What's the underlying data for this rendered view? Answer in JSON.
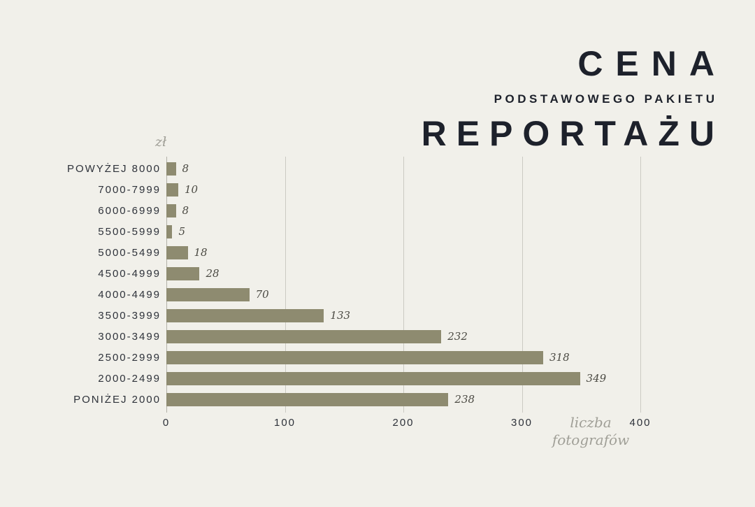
{
  "title": {
    "line1": "CENA",
    "line2": "PODSTAWOWEGO PAKIETU",
    "line3": "REPORTAŻU"
  },
  "axis": {
    "y_unit": "zł",
    "x_label_line1": "liczba",
    "x_label_line2": "fotografów",
    "ticks": [
      "0",
      "100",
      "200",
      "300",
      "400"
    ]
  },
  "chart_data": {
    "type": "bar",
    "orientation": "horizontal",
    "title": "CENA PODSTAWOWEGO PAKIETU REPORTAŻU",
    "xlabel": "liczba fotografów",
    "ylabel": "zł",
    "categories": [
      "POWYŻEJ 8000",
      "7000-7999",
      "6000-6999",
      "5500-5999",
      "5000-5499",
      "4500-4999",
      "4000-4499",
      "3500-3999",
      "3000-3499",
      "2500-2999",
      "2000-2499",
      "PONIŻEJ 2000"
    ],
    "values": [
      8,
      10,
      8,
      5,
      18,
      28,
      70,
      133,
      232,
      318,
      349,
      238
    ],
    "xlim": [
      0,
      400
    ],
    "x_tick_step": 100,
    "grid": true,
    "legend": false,
    "bar_color": "#8e8b70"
  },
  "colors": {
    "bg": "#f1f0ea",
    "bar": "#8e8b70",
    "title": "#1d212b",
    "label": "#2e323a",
    "value": "#4b4a43",
    "axis_muted": "#a09f97",
    "grid": "#cbcac3",
    "grid_zero": "#b2b1a8"
  }
}
